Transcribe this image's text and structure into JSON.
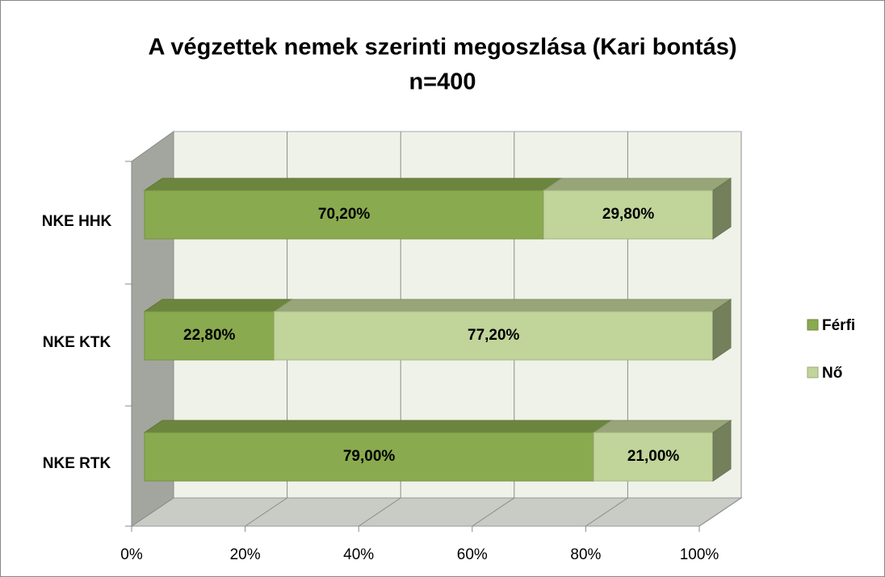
{
  "chart_data": {
    "type": "bar",
    "orientation": "horizontal",
    "stacked": true,
    "title": "A végzettek nemek szerinti megoszlása (Kari bontás)",
    "subtitle": "n=400",
    "categories": [
      "NKE HHK",
      "NKE KTK",
      "NKE RTK"
    ],
    "series": [
      {
        "name": "Férfi",
        "color": "#8aaa4f",
        "values": [
          70.2,
          22.8,
          79.0
        ],
        "value_labels": [
          "70,20%",
          "22,80%",
          "79,00%"
        ]
      },
      {
        "name": "Nő",
        "color": "#c1d49a",
        "values": [
          29.8,
          77.2,
          21.0
        ],
        "value_labels": [
          "29,80%",
          "77,20%",
          "21,00%"
        ]
      }
    ],
    "xlim": [
      0,
      100
    ],
    "xticks": [
      {
        "value": 0,
        "label": "0%"
      },
      {
        "value": 20,
        "label": "20%"
      },
      {
        "value": 40,
        "label": "40%"
      },
      {
        "value": 60,
        "label": "60%"
      },
      {
        "value": 80,
        "label": "80%"
      },
      {
        "value": 100,
        "label": "100%"
      }
    ],
    "grid": true,
    "legend": "right"
  }
}
